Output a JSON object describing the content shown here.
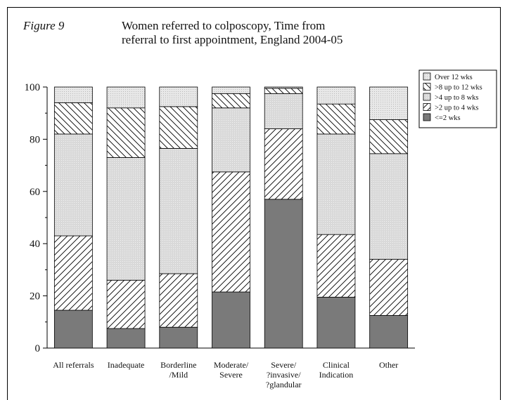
{
  "figure": {
    "label": "Figure 9",
    "title_line1": "Women referred to colposcopy, Time from",
    "title_line2": "referral to first appointment, England 2004-05"
  },
  "colors": {
    "dark": "#7a7a7a",
    "light_fill": "#d9d9d9",
    "stroke": "#000000"
  },
  "chart_data": {
    "type": "bar",
    "stacked": true,
    "title": "Women referred to colposcopy, Time from referral to first appointment, England 2004-05",
    "xlabel": "",
    "ylabel": "",
    "ylim": [
      0,
      100
    ],
    "yticks": [
      0,
      20,
      40,
      60,
      80,
      100
    ],
    "categories": [
      [
        "All referrals"
      ],
      [
        "Inadequate"
      ],
      [
        "Borderline",
        "/Mild"
      ],
      [
        "Moderate/",
        "Severe"
      ],
      [
        "Severe/",
        "?invasive/",
        "?glandular"
      ],
      [
        "Clinical",
        "Indication"
      ],
      [
        "Other"
      ]
    ],
    "series": [
      {
        "name": "<=2 wks",
        "style": "dark",
        "values": [
          14.5,
          7.5,
          8.0,
          21.5,
          57.0,
          19.5,
          12.5
        ]
      },
      {
        "name": ">2 up to 4 wks",
        "style": "hatch-forward",
        "values": [
          28.5,
          18.5,
          20.5,
          46.0,
          27.0,
          24.0,
          21.5
        ]
      },
      {
        "name": ">4 up to 8 wks",
        "style": "light",
        "values": [
          39.0,
          47.0,
          48.0,
          24.5,
          13.5,
          38.5,
          40.5
        ]
      },
      {
        "name": ">8 up to 12 wks",
        "style": "hatch-back",
        "values": [
          12.0,
          19.0,
          16.0,
          5.5,
          2.0,
          11.5,
          13.0
        ]
      },
      {
        "name": "Over 12 wks",
        "style": "light-dotted",
        "values": [
          6.0,
          8.0,
          7.5,
          2.5,
          0.5,
          6.5,
          12.5
        ]
      }
    ],
    "legend_order": [
      "Over 12 wks",
      ">8 up to 12 wks",
      ">4 up to 8 wks",
      ">2 up to 4 wks",
      "<=2 wks"
    ],
    "legend_position": "right",
    "grid": false
  }
}
